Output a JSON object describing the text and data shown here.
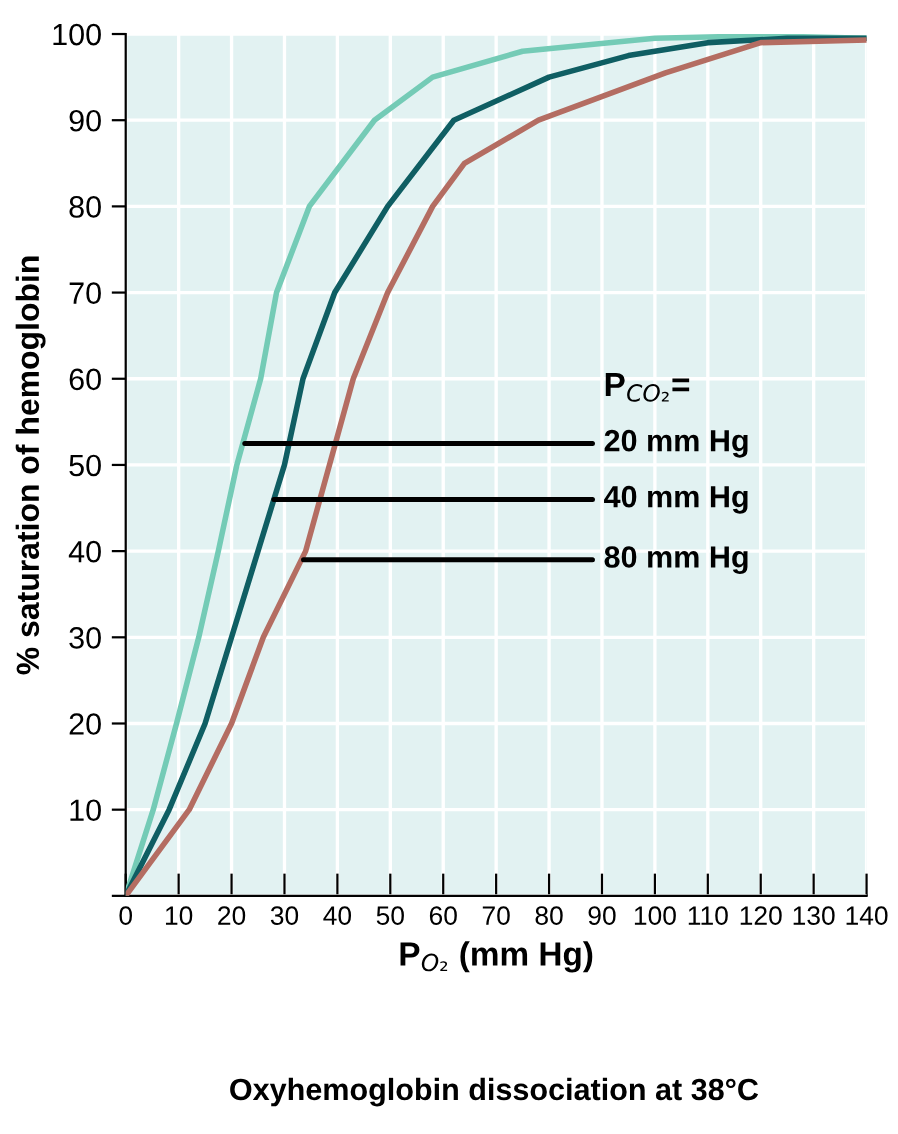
{
  "chart_data": {
    "type": "line",
    "title": "Oxyhemoglobin dissociation at 38°C",
    "xlabel": "P$_{O₂}$ (mm Hg)",
    "ylabel": "% saturation of hemoglobin",
    "xlim": [
      0,
      140
    ],
    "ylim": [
      0,
      100
    ],
    "xticks": [
      0,
      10,
      20,
      30,
      40,
      50,
      60,
      70,
      80,
      90,
      100,
      110,
      120,
      130,
      140
    ],
    "yticks": [
      {
        "value": 0,
        "label": null
      },
      10,
      20,
      30,
      40,
      50,
      60,
      70,
      80,
      90,
      100
    ],
    "grid": true,
    "series": [
      {
        "color": "#74cbb6",
        "x": [
          0,
          5.2,
          9.6,
          13.8,
          17.5,
          21,
          25.5,
          28.5,
          34.7,
          47,
          58,
          75,
          100,
          120,
          140
        ],
        "values": [
          0,
          10,
          20,
          30,
          40,
          50,
          60,
          70,
          80,
          90,
          95,
          98,
          99.5,
          99.8,
          99.5
        ]
      },
      {
        "color": "#0f5e63",
        "x": [
          0,
          8.2,
          15,
          20,
          25,
          30,
          33.5,
          39.5,
          49.5,
          62,
          80,
          95,
          110,
          125,
          140
        ],
        "values": [
          0,
          10,
          20,
          30,
          40,
          50,
          60,
          70,
          80,
          90,
          95,
          97.5,
          99,
          99.5,
          99.5
        ]
      },
      {
        "color": "#b46d62",
        "x": [
          0,
          12,
          20,
          26,
          34,
          38.5,
          43,
          49.5,
          58,
          64,
          78,
          102,
          120,
          140
        ],
        "values": [
          0,
          10,
          20,
          30,
          40,
          50,
          60,
          70,
          80,
          85,
          90,
          95.5,
          99,
          99.3
        ]
      }
    ],
    "annotations": [
      "P$_{CO₂}$=",
      {
        "text": "20 mm Hg",
        "x": 22.5,
        "y": 52.5
      },
      {
        "text": "40 mm Hg",
        "x": 28,
        "y": 46
      },
      {
        "text": "80 mm Hg",
        "x": 33.6,
        "y": 39
      }
    ]
  }
}
